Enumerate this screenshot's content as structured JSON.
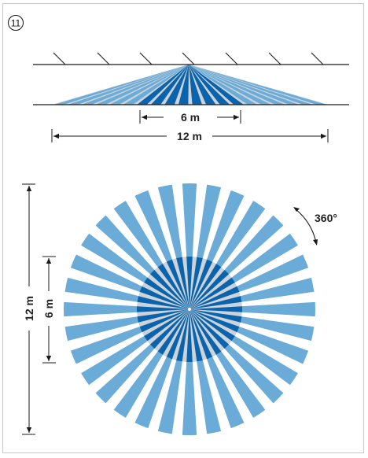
{
  "figure_number": "11",
  "top_view": {
    "inner_dimension": "6 m",
    "outer_dimension": "12 m"
  },
  "plan_view": {
    "rotation_label": "360°",
    "outer_dimension": "12 m",
    "inner_dimension": "6 m"
  },
  "colors": {
    "light_blue": "#6aabd8",
    "dark_blue": "#0a64ad",
    "gray": "#cdd3d8",
    "line": "#1a1a1a"
  }
}
